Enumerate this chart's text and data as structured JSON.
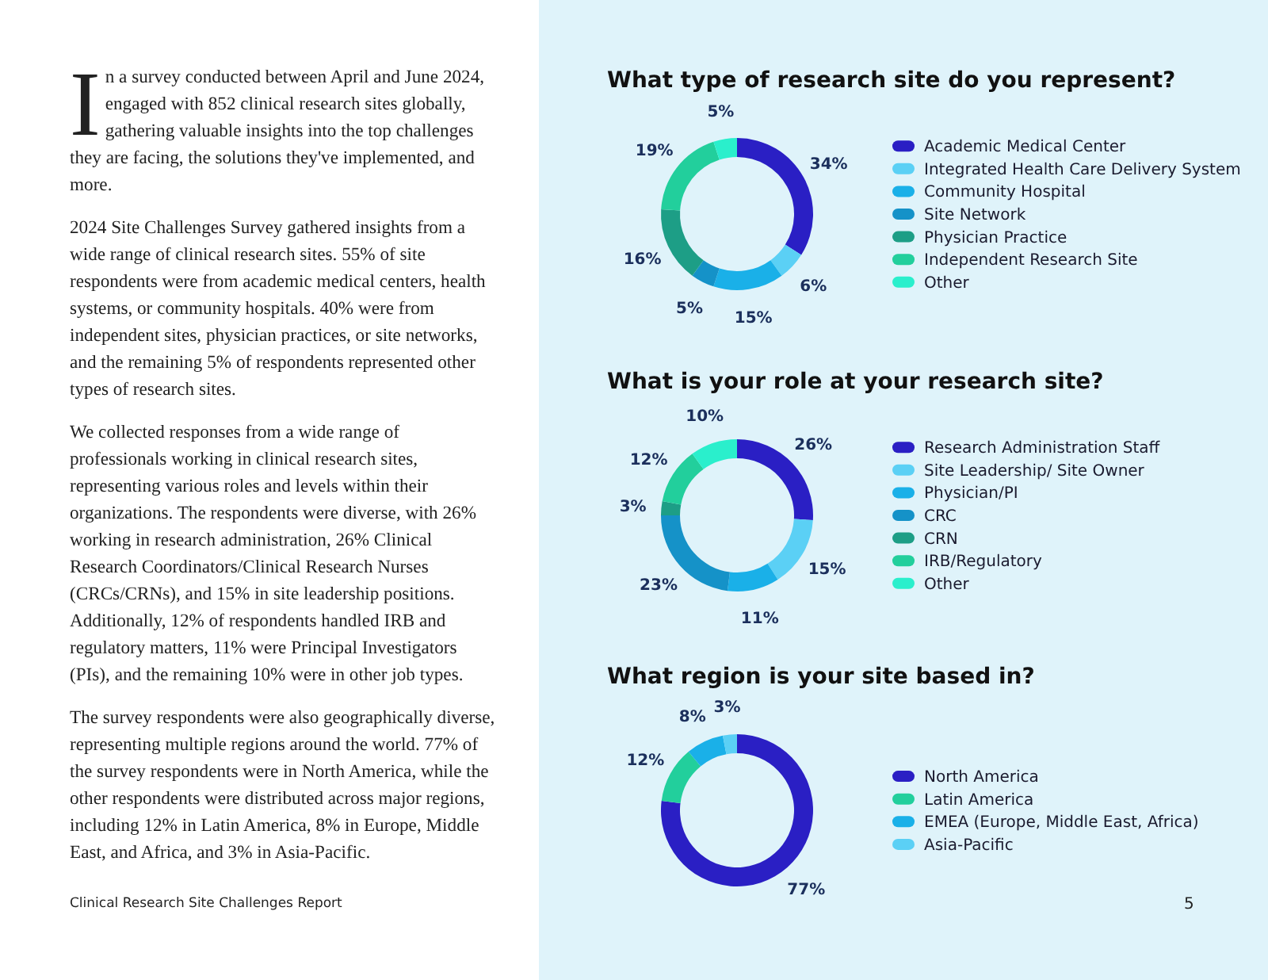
{
  "chart_data": [
    {
      "type": "other",
      "annotations": [
        "In a survey conducted between April and June 2024, engaged with 852 clinical research sites globally, gathering valuable insights into the top challenges they are facing, the solutions they've implemented, and more.",
        "2024 Site Challenges Survey gathered insights from a wide range of clinical research sites. 55% of site respondents were from academic medical centers, health systems, or community hospitals. 40% were from independent sites, physician practices, or site networks, and the remaining 5% of respondents represented other types of research sites.",
        "We collected responses from a wide range of professionals working in clinical research sites, representing various roles and levels within their organizations. The respondents were diverse, with 26% working in research administration, 26% Clinical Research Coordinators/Clinical Research Nurses (CRCs/CRNs), and 15% in site leadership positions. Additionally, 12% of respondents handled IRB and regulatory matters, 11% were Principal Investigators (PIs), and the remaining 10% were in other job types.",
        "The survey respondents were also geographically diverse, representing multiple regions around the world. 77% of the survey respondents were in North America, while the other respondents were distributed across major regions, including 12% in Latin America, 8% in Europe, Middle East, and Africa, and 3% in Asia-Pacific.",
        "Clinical Research Site Challenges Report",
        "5"
      ]
    },
    {
      "type": "donut",
      "title": "What type of research site do you represent?",
      "legend": "right",
      "categories": [
        "Academic Medical Center",
        "Integrated Health Care Delivery System",
        "Community Hospital",
        "Site Network",
        "Physician Practice",
        "Independent Research Site",
        "Other"
      ],
      "values": [
        34,
        6,
        15,
        5,
        16,
        19,
        5
      ],
      "value_labels": [
        "34%",
        "6%",
        "15%",
        "5%",
        "16%",
        "19%",
        "5%"
      ],
      "colors": [
        "#2a1fc4",
        "#5bd0f5",
        "#1ab0e8",
        "#1592c8",
        "#1d9e86",
        "#22cf9c",
        "#2aefcc"
      ]
    },
    {
      "type": "donut",
      "title": "What is your role at your research site?",
      "legend": "right",
      "categories": [
        "Research Administration Staff",
        "Site Leadership/ Site Owner",
        "Physician/PI",
        "CRC",
        "CRN",
        "IRB/Regulatory",
        "Other"
      ],
      "values": [
        26,
        15,
        11,
        23,
        3,
        12,
        10
      ],
      "value_labels": [
        "26%",
        "15%",
        "11%",
        "23%",
        "3%",
        "12%",
        "10%"
      ],
      "colors": [
        "#2a1fc4",
        "#5bd0f5",
        "#1ab0e8",
        "#1592c8",
        "#1d9e86",
        "#22cf9c",
        "#2aefcc"
      ]
    },
    {
      "type": "donut",
      "title": "What region is your site based in?",
      "legend": "right",
      "categories": [
        "North America",
        "Latin America",
        "EMEA (Europe, Middle East, Africa)",
        "Asia-Pacific"
      ],
      "values": [
        77,
        12,
        8,
        3
      ],
      "value_labels": [
        "77%",
        "12%",
        "8%",
        "3%"
      ],
      "colors": [
        "#2a1fc4",
        "#22cf9c",
        "#1ab0e8",
        "#5bd0f5"
      ]
    }
  ]
}
